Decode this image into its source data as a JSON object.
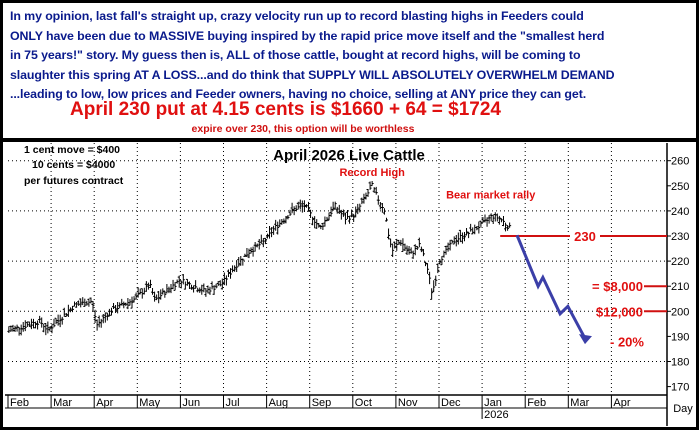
{
  "commentary": {
    "lines": [
      "In my opinion, last fall's straight up, crazy velocity run up to record blasting highs in Feeders could",
      "ONLY have been due to MASSIVE buying inspired by the rapid price move itself and the \"smallest herd",
      "in 75 years!\" story. My guess then is, ALL of those cattle, bought at record highs, will be coming to",
      "slaughter this spring AT A LOSS...and do think that SUPPLY WILL ABSOLUTELY OVERWHELM DEMAND",
      "...leading to low, low prices and Feeder owners, having no choice, selling at ANY price they can get."
    ],
    "headline": "April 230 put at 4.15 cents is $1660 + 64 = $1724",
    "subline": "expire over 230, this option will be worthless"
  },
  "colors": {
    "text_blue": "#0a1a8c",
    "red": "#e01010",
    "arrow": "#3b3fa8",
    "bars": "#000000"
  },
  "chart_data": {
    "type": "ohlc",
    "title": "April 2026 Live Cattle",
    "contract_notes": [
      "1 cent move = $400",
      "10 cents = $4000",
      "per futures contract"
    ],
    "xlabel": "Day",
    "ylim": [
      165,
      265
    ],
    "yticks": [
      170,
      180,
      190,
      200,
      210,
      220,
      230,
      240,
      250,
      260
    ],
    "x_units": "months since Feb 2025 (0 = Feb 1)",
    "month_ticks": [
      "Feb",
      "Mar",
      "Apr",
      "May",
      "Jun",
      "Jul",
      "Aug",
      "Sep",
      "Oct",
      "Nov",
      "Dec",
      "Jan",
      "Feb",
      "Mar",
      "Apr"
    ],
    "year_label": "2026",
    "year_label_month_index": 11,
    "price_path": [
      [
        0.0,
        192
      ],
      [
        0.05,
        192.6
      ],
      [
        0.74,
        196
      ],
      [
        0.93,
        192.5
      ],
      [
        1.55,
        202.5
      ],
      [
        1.95,
        204
      ],
      [
        2.06,
        194.5
      ],
      [
        2.37,
        200
      ],
      [
        2.95,
        205
      ],
      [
        3.29,
        210.5
      ],
      [
        3.41,
        204.5
      ],
      [
        3.99,
        212.5
      ],
      [
        4.57,
        208
      ],
      [
        4.97,
        211
      ],
      [
        5.27,
        218
      ],
      [
        5.61,
        224
      ],
      [
        5.96,
        228
      ],
      [
        6.15,
        232.5
      ],
      [
        6.66,
        241
      ],
      [
        6.89,
        242
      ],
      [
        7.24,
        233
      ],
      [
        7.59,
        242
      ],
      [
        7.82,
        237
      ],
      [
        8.05,
        238.5
      ],
      [
        8.45,
        250
      ],
      [
        8.58,
        245
      ],
      [
        8.75,
        240
      ],
      [
        8.82,
        231.5
      ],
      [
        8.91,
        224
      ],
      [
        9.1,
        228
      ],
      [
        9.33,
        222.5
      ],
      [
        9.56,
        226.5
      ],
      [
        9.74,
        216.5
      ],
      [
        9.84,
        207
      ],
      [
        10.02,
        220.5
      ],
      [
        10.37,
        228.5
      ],
      [
        10.72,
        231.5
      ],
      [
        11.07,
        235.5
      ],
      [
        11.23,
        238
      ],
      [
        11.42,
        237
      ],
      [
        11.53,
        235
      ],
      [
        11.65,
        233
      ]
    ],
    "annotations": [
      {
        "text": "Record High",
        "month": 8.45,
        "price": 254
      },
      {
        "text": "Bear market rally",
        "month": 11.2,
        "price": 245
      }
    ],
    "projection_arrow": [
      [
        11.81,
        230.3
      ],
      [
        12.3,
        210
      ],
      [
        12.41,
        213.5
      ],
      [
        12.81,
        199
      ],
      [
        12.99,
        202
      ],
      [
        13.41,
        188.5
      ]
    ],
    "levels": [
      {
        "label": "230",
        "price": 230,
        "from_month": 11.42
      },
      {
        "label": "= $8,000",
        "price": 210,
        "from_month": 14.7
      },
      {
        "label": "$12,000",
        "price": 200,
        "from_month": 14.7
      }
    ],
    "pct_label": "- 20%"
  }
}
